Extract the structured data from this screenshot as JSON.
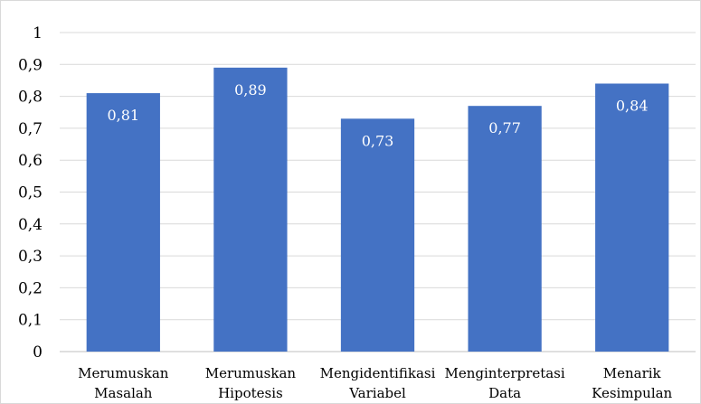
{
  "chart_data": {
    "type": "bar",
    "categories": [
      [
        "Merumuskan",
        "Masalah"
      ],
      [
        "Merumuskan",
        "Hipotesis"
      ],
      [
        "Mengidentifikasi",
        "Variabel"
      ],
      [
        "Menginterpretasi",
        "Data"
      ],
      [
        "Menarik",
        "Kesimpulan"
      ]
    ],
    "values": [
      0.81,
      0.89,
      0.73,
      0.77,
      0.84
    ],
    "value_labels": [
      "0,81",
      "0,89",
      "0,73",
      "0,77",
      "0,84"
    ],
    "y_ticks": [
      0,
      0.1,
      0.2,
      0.3,
      0.4,
      0.5,
      0.6,
      0.7,
      0.8,
      0.9,
      1
    ],
    "y_tick_labels": [
      "0",
      "0,1",
      "0,2",
      "0,3",
      "0,4",
      "0,5",
      "0,6",
      "0,7",
      "0,8",
      "0,9",
      "1"
    ],
    "ylim": [
      0,
      1
    ],
    "grid": true,
    "legend": "none",
    "bar_color": "#4472c4",
    "title": "",
    "xlabel": "",
    "ylabel": ""
  }
}
